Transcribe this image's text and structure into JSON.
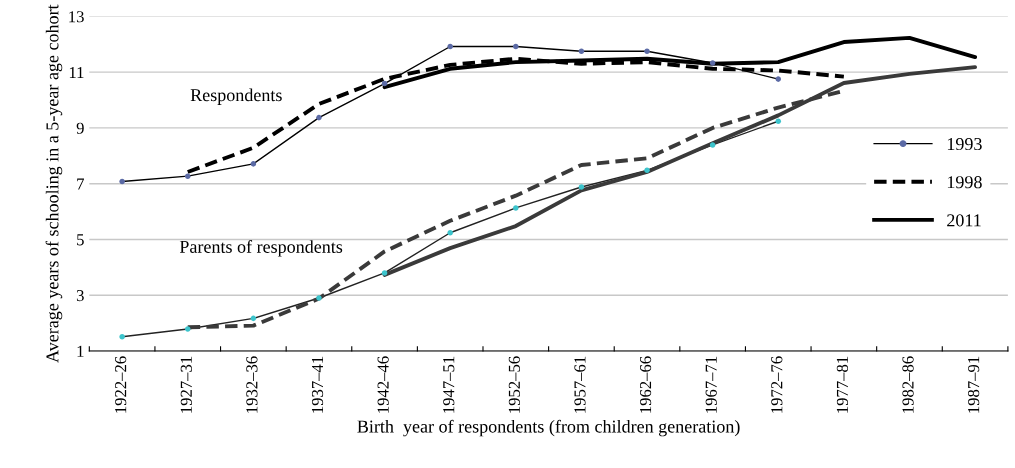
{
  "chart_data": {
    "type": "line",
    "xlabel": "Birth  year of respondents (from children generation)",
    "ylabel": "Average years of schooling in a 5-year age cohort",
    "categories": [
      "1922–26",
      "1927–31",
      "1932–36",
      "1937–41",
      "1942–46",
      "1947–51",
      "1952–56",
      "1957–61",
      "1962–66",
      "1967–71",
      "1972–76",
      "1977–81",
      "1982–86",
      "1987–91"
    ],
    "series": [
      {
        "name": "1993",
        "color": "#000000",
        "marker": "circle",
        "line_style": "solid",
        "colors": [
          "#5b6aa5",
          "#5b6aa5",
          "#5b6aa5",
          "#5b6aa5",
          "#5b6aa5",
          "#5b6aa5",
          "#5b6aa5",
          "#5b6aa5",
          "#5b6aa5",
          "#5b6aa5",
          "#5b6aa5",
          null,
          null,
          null
        ],
        "values": [
          7.08,
          7.27,
          7.71,
          9.37,
          10.59,
          11.92,
          11.92,
          11.75,
          11.75,
          11.33,
          10.75,
          null,
          null,
          null
        ]
      },
      {
        "color": "#222222",
        "marker": "circle",
        "line_style": "solid",
        "colors": [
          "#3cc4cc",
          "#3cc4cc",
          "#3cc4cc",
          "#3cc4cc",
          "#3cc4cc",
          "#3cc4cc",
          "#3cc4cc",
          "#3cc4cc",
          "#3cc4cc",
          "#3cc4cc",
          "#3cc4cc",
          null,
          null,
          null
        ],
        "values": [
          1.51,
          1.79,
          2.17,
          2.9,
          3.8,
          5.24,
          6.13,
          6.88,
          7.48,
          8.39,
          9.24,
          null,
          null,
          null
        ]
      },
      {
        "name": "1998",
        "color": "#000000",
        "marker": "none",
        "line_style": "dashed",
        "values": [
          null,
          7.42,
          8.29,
          9.86,
          10.76,
          11.26,
          11.48,
          11.3,
          11.36,
          11.12,
          11.06,
          10.84,
          null,
          null
        ]
      },
      {
        "color": "#3a3a3a",
        "marker": "none",
        "line_style": "dashed",
        "values": [
          null,
          1.85,
          1.91,
          2.88,
          4.57,
          5.67,
          6.57,
          7.67,
          7.91,
          9.0,
          9.73,
          10.33,
          null,
          null
        ]
      },
      {
        "name": "2011",
        "color": "#000000",
        "marker": "none",
        "line_style": "solid",
        "values": [
          null,
          null,
          null,
          null,
          10.46,
          11.12,
          11.36,
          11.42,
          11.48,
          11.3,
          11.36,
          12.08,
          12.23,
          11.54
        ]
      },
      {
        "color": "#3a3a3a",
        "marker": "none",
        "line_style": "solid",
        "values": [
          null,
          null,
          null,
          null,
          3.73,
          4.69,
          5.48,
          6.76,
          7.42,
          8.45,
          9.45,
          10.61,
          10.94,
          11.18
        ]
      }
    ],
    "annotations": [
      "Respondents",
      "Parents of respondents"
    ],
    "ylim": [
      1,
      13
    ],
    "yticks": [
      1,
      3,
      5,
      7,
      9,
      11,
      13
    ],
    "grid": "y",
    "legend": "right"
  }
}
